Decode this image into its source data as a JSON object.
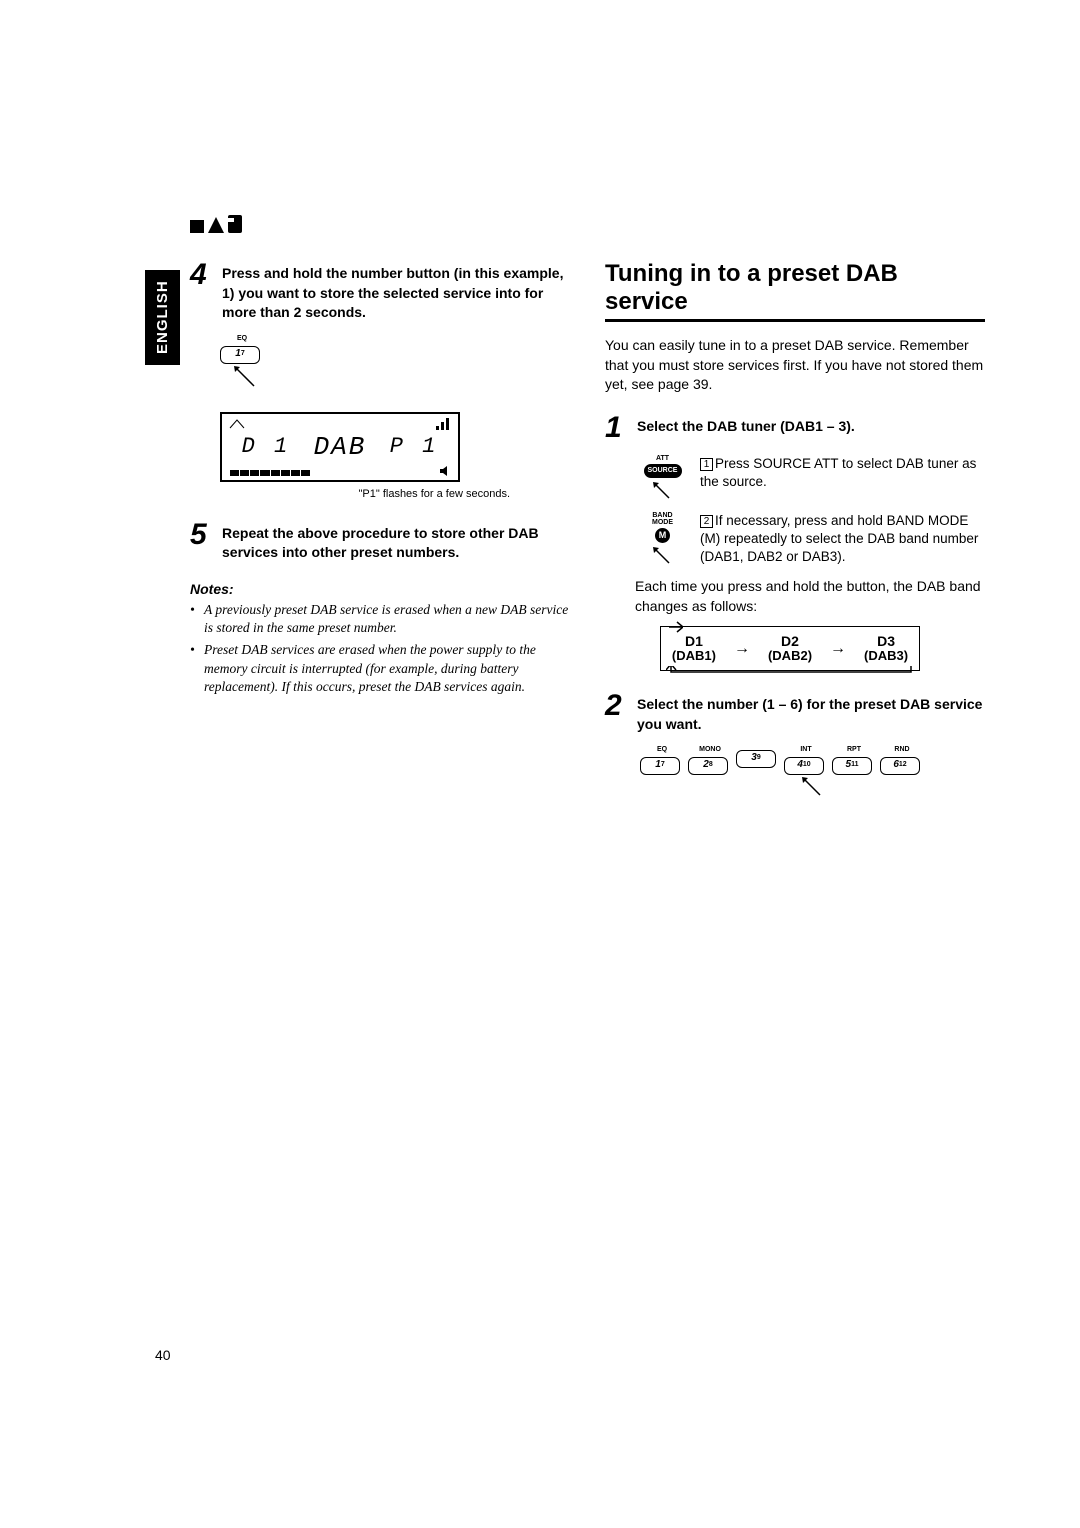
{
  "english_tab": "ENGLISH",
  "page_number": "40",
  "left": {
    "step4": {
      "num": "4",
      "text": "Press and hold the number button (in this example, 1) you want to store the selected service into for more than 2 seconds.",
      "preset_label": "EQ",
      "preset_btn": "1",
      "preset_sup": "7",
      "lcd_left": "D 1",
      "lcd_center": "DAB",
      "lcd_right": "P 1",
      "caption": "\"P1\" flashes for a few seconds."
    },
    "step5": {
      "num": "5",
      "text": "Repeat the above procedure to store other DAB services into other preset numbers."
    },
    "notes_heading": "Notes:",
    "notes": [
      "A previously preset DAB service is erased when a new DAB service is stored in the same preset number.",
      "Preset DAB services are erased when the power supply to the memory circuit is interrupted (for example, during battery replacement). If this occurs, preset the DAB services again."
    ]
  },
  "right": {
    "title": "Tuning in to a preset DAB service",
    "intro": "You can easily tune in to a preset DAB service. Remember that you must store services first. If you have not stored them yet, see page 39.",
    "step1": {
      "num": "1",
      "text": "Select the DAB tuner (DAB1 – 3).",
      "sub1": {
        "n": "1",
        "label_top": "ATT",
        "btn": "SOURCE",
        "text": "Press SOURCE ATT to select DAB tuner as the source."
      },
      "sub2": {
        "n": "2",
        "label_top": "BAND\nMODE",
        "btn": "M",
        "text": "If necessary, press and hold BAND MODE (M) repeatedly to select the DAB band number (DAB1, DAB2 or DAB3)."
      },
      "each_time": "Each time you press and hold the button, the DAB band changes as follows:",
      "cycle": [
        {
          "t": "D1",
          "b": "(DAB1)"
        },
        {
          "t": "D2",
          "b": "(DAB2)"
        },
        {
          "t": "D3",
          "b": "(DAB3)"
        }
      ]
    },
    "step2": {
      "num": "2",
      "text": "Select the number (1 – 6) for the preset DAB service you want.",
      "presets": [
        {
          "label": "EQ",
          "n": "1",
          "s": "7"
        },
        {
          "label": "MONO",
          "n": "2",
          "s": "8"
        },
        {
          "label": "",
          "n": "3",
          "s": "9"
        },
        {
          "label": "INT",
          "n": "4",
          "s": "10"
        },
        {
          "label": "RPT",
          "n": "5",
          "s": "11"
        },
        {
          "label": "RND",
          "n": "6",
          "s": "12"
        }
      ]
    }
  }
}
